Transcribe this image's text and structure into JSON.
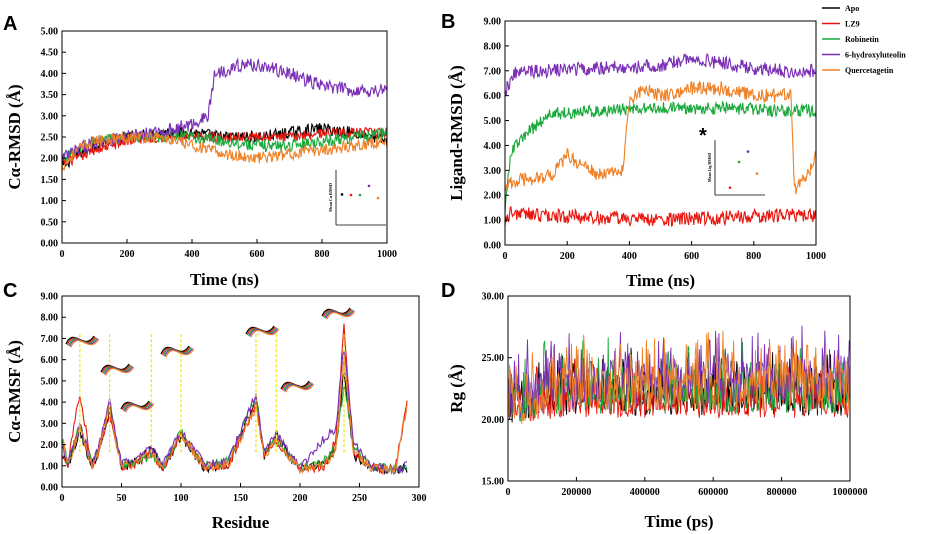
{
  "figure": {
    "legend": [
      {
        "name": "Apo",
        "color": "#000000"
      },
      {
        "name": "LZ9",
        "color": "#e8160f"
      },
      {
        "name": "Robinetin",
        "color": "#19a83a"
      },
      {
        "name": "6-hydroxyluteolin",
        "color": "#7a2fb5"
      },
      {
        "name": "Quercetagetin",
        "color": "#ee8127"
      }
    ]
  },
  "chart_data": [
    {
      "panel": "A",
      "type": "line",
      "xlabel": "Time (ns)",
      "ylabel": "Cα-RMSD (Å)",
      "xlim": [
        0,
        1000
      ],
      "ylim": [
        0,
        5
      ],
      "xticks": [
        "0",
        "200",
        "400",
        "600",
        "800",
        "1000"
      ],
      "yticks": [
        "0.00",
        "0.50",
        "1.00",
        "1.50",
        "2.00",
        "2.50",
        "3.00",
        "3.50",
        "4.00",
        "4.50",
        "5.00"
      ],
      "series": [
        {
          "name": "Apo",
          "x": [
            0,
            50,
            100,
            200,
            300,
            400,
            500,
            600,
            700,
            800,
            900,
            1000
          ],
          "y": [
            1.8,
            2.1,
            2.3,
            2.5,
            2.6,
            2.6,
            2.5,
            2.5,
            2.6,
            2.7,
            2.6,
            2.4
          ],
          "noise": 0.14
        },
        {
          "name": "LZ9",
          "x": [
            0,
            50,
            100,
            200,
            300,
            400,
            500,
            600,
            700,
            800,
            900,
            1000
          ],
          "y": [
            1.9,
            2.0,
            2.2,
            2.4,
            2.5,
            2.5,
            2.5,
            2.5,
            2.5,
            2.6,
            2.6,
            2.6
          ],
          "noise": 0.12
        },
        {
          "name": "Robinetin",
          "x": [
            0,
            50,
            100,
            200,
            300,
            400,
            500,
            600,
            700,
            800,
            900,
            1000
          ],
          "y": [
            2.0,
            2.2,
            2.4,
            2.5,
            2.5,
            2.5,
            2.4,
            2.3,
            2.3,
            2.4,
            2.5,
            2.6
          ],
          "noise": 0.14
        },
        {
          "name": "6-hydroxyluteolin",
          "x": [
            0,
            50,
            100,
            200,
            300,
            400,
            450,
            470,
            550,
            600,
            700,
            800,
            900,
            1000
          ],
          "y": [
            2.0,
            2.2,
            2.4,
            2.5,
            2.6,
            2.8,
            3.0,
            4.0,
            4.2,
            4.2,
            4.0,
            3.7,
            3.6,
            3.6
          ],
          "noise": 0.16
        },
        {
          "name": "Quercetagetin",
          "x": [
            0,
            50,
            100,
            200,
            300,
            400,
            500,
            600,
            700,
            800,
            900,
            1000
          ],
          "y": [
            1.8,
            2.2,
            2.4,
            2.5,
            2.5,
            2.3,
            2.1,
            2.0,
            2.1,
            2.2,
            2.3,
            2.4
          ],
          "noise": 0.14
        }
      ],
      "inset": {
        "ylabel": "Mean Cα RMSD",
        "values": [
          2.5,
          2.45,
          2.45,
          3.2,
          2.2
        ]
      }
    },
    {
      "panel": "B",
      "type": "line",
      "xlabel": "Time (ns)",
      "ylabel": "Ligand-RMSD (Å)",
      "xlim": [
        0,
        1000
      ],
      "ylim": [
        0,
        9
      ],
      "xticks": [
        "0",
        "200",
        "400",
        "600",
        "800",
        "1000"
      ],
      "yticks": [
        "0.00",
        "1.00",
        "2.00",
        "3.00",
        "4.00",
        "5.00",
        "6.00",
        "7.00",
        "8.00",
        "9.00"
      ],
      "series": [
        {
          "name": "LZ9",
          "x": [
            0,
            20,
            100,
            300,
            500,
            700,
            900,
            1000
          ],
          "y": [
            1.0,
            1.3,
            1.2,
            1.1,
            1.0,
            1.1,
            1.2,
            1.2
          ],
          "noise": 0.28
        },
        {
          "name": "Robinetin",
          "x": [
            0,
            20,
            80,
            150,
            200,
            300,
            500,
            700,
            900,
            1000
          ],
          "y": [
            1.5,
            3.8,
            4.6,
            5.3,
            5.3,
            5.4,
            5.5,
            5.5,
            5.4,
            5.4
          ],
          "noise": 0.25
        },
        {
          "name": "6-hydroxyluteolin",
          "x": [
            0,
            30,
            100,
            300,
            500,
            600,
            700,
            800,
            900,
            1000
          ],
          "y": [
            6.2,
            6.9,
            7.0,
            7.1,
            7.2,
            7.5,
            7.3,
            7.1,
            7.0,
            7.0
          ],
          "noise": 0.28
        },
        {
          "name": "Quercetagetin",
          "x": [
            0,
            50,
            150,
            200,
            300,
            380,
            400,
            450,
            500,
            600,
            700,
            800,
            900,
            920,
            930,
            980,
            1000
          ],
          "y": [
            2.4,
            2.6,
            2.8,
            3.6,
            2.8,
            3.0,
            5.8,
            6.3,
            6.0,
            6.3,
            6.3,
            6.0,
            6.0,
            6.0,
            2.2,
            3.0,
            3.8
          ],
          "noise": 0.28
        }
      ],
      "inset": {
        "ylabel": "Mean Lig RMSD",
        "annotation": "*",
        "values": [
          null,
          1.2,
          5.4,
          7.1,
          3.5
        ]
      }
    },
    {
      "panel": "C",
      "type": "line",
      "xlabel": "Residue",
      "ylabel": "Cα-RMSF (Å)",
      "xlim": [
        0,
        300
      ],
      "ylim": [
        0,
        9
      ],
      "xticks": [
        "0",
        "50",
        "100",
        "150",
        "200",
        "250",
        "300"
      ],
      "yticks": [
        "0.00",
        "1.00",
        "2.00",
        "3.00",
        "4.00",
        "5.00",
        "6.00",
        "7.00",
        "8.00",
        "9.00"
      ],
      "markers": [
        15,
        40,
        75,
        100,
        163,
        180,
        237
      ],
      "series": [
        {
          "name": "Apo",
          "x": [
            1,
            5,
            15,
            25,
            30,
            40,
            50,
            60,
            75,
            85,
            100,
            120,
            140,
            163,
            170,
            180,
            200,
            220,
            230,
            237,
            245,
            260,
            280,
            290
          ],
          "y": [
            1.4,
            1.0,
            2.6,
            1.0,
            1.6,
            3.6,
            1.0,
            1.1,
            1.8,
            0.9,
            2.4,
            0.9,
            1.1,
            4.2,
            1.5,
            2.4,
            0.9,
            1.1,
            1.8,
            5.5,
            1.5,
            0.9,
            0.8,
            0.9
          ],
          "noise": 0.22
        },
        {
          "name": "LZ9",
          "x": [
            1,
            5,
            15,
            25,
            30,
            40,
            50,
            60,
            75,
            85,
            100,
            120,
            140,
            163,
            170,
            180,
            200,
            220,
            230,
            237,
            245,
            260,
            280,
            290
          ],
          "y": [
            1.5,
            1.0,
            4.5,
            1.0,
            1.5,
            3.4,
            1.0,
            1.0,
            1.6,
            0.9,
            2.5,
            0.9,
            1.0,
            3.9,
            1.4,
            2.1,
            0.8,
            1.0,
            2.2,
            7.6,
            1.6,
            0.9,
            0.8,
            4.0
          ],
          "noise": 0.22
        },
        {
          "name": "Robinetin",
          "x": [
            1,
            5,
            15,
            25,
            30,
            40,
            50,
            60,
            75,
            85,
            100,
            120,
            140,
            163,
            170,
            180,
            200,
            220,
            230,
            237,
            245,
            260,
            280,
            290
          ],
          "y": [
            2.0,
            1.1,
            2.9,
            1.1,
            1.7,
            3.8,
            1.1,
            1.1,
            1.5,
            0.9,
            2.6,
            1.0,
            1.2,
            4.3,
            1.6,
            2.3,
            0.9,
            1.2,
            1.9,
            4.8,
            1.9,
            1.0,
            0.8,
            0.9
          ],
          "noise": 0.22
        },
        {
          "name": "6-hydroxyluteolin",
          "x": [
            1,
            5,
            15,
            25,
            30,
            40,
            50,
            60,
            75,
            85,
            100,
            120,
            140,
            163,
            170,
            180,
            200,
            220,
            230,
            237,
            245,
            260,
            280,
            290
          ],
          "y": [
            1.8,
            1.1,
            3.0,
            1.1,
            1.8,
            4.0,
            1.1,
            1.2,
            1.8,
            1.0,
            2.7,
            1.0,
            1.2,
            4.4,
            1.7,
            2.5,
            0.9,
            2.3,
            2.8,
            6.6,
            2.1,
            1.0,
            0.8,
            1.0
          ],
          "noise": 0.22
        },
        {
          "name": "Quercetagetin",
          "x": [
            1,
            5,
            15,
            25,
            30,
            40,
            50,
            60,
            75,
            85,
            100,
            120,
            140,
            163,
            170,
            180,
            200,
            220,
            230,
            237,
            245,
            260,
            280,
            290
          ],
          "y": [
            2.2,
            1.0,
            2.8,
            1.0,
            1.6,
            3.7,
            1.0,
            1.1,
            1.6,
            0.9,
            2.5,
            0.9,
            1.1,
            3.8,
            1.4,
            2.2,
            0.8,
            1.0,
            1.7,
            6.0,
            1.6,
            0.9,
            0.8,
            3.9
          ],
          "noise": 0.22
        }
      ]
    },
    {
      "panel": "D",
      "type": "line",
      "xlabel": "Time (ps)",
      "ylabel": "Rg (Å)",
      "xlim": [
        0,
        1000000
      ],
      "ylim": [
        15,
        30
      ],
      "xticks": [
        "0",
        "200000",
        "400000",
        "600000",
        "800000",
        "1000000"
      ],
      "yticks": [
        "15.00",
        "20.00",
        "25.00",
        "30.00"
      ],
      "series": [
        {
          "name": "Apo",
          "x": [
            0,
            100000,
            400000,
            700000,
            1000000
          ],
          "y": [
            20.8,
            21.5,
            21.6,
            21.6,
            21.6
          ],
          "noise": 1.3
        },
        {
          "name": "LZ9",
          "x": [
            0,
            100000,
            400000,
            700000,
            1000000
          ],
          "y": [
            20.4,
            20.8,
            21.0,
            21.0,
            21.0
          ],
          "noise": 0.9
        },
        {
          "name": "Robinetin",
          "x": [
            0,
            100000,
            400000,
            700000,
            1000000
          ],
          "y": [
            20.8,
            22.0,
            22.0,
            22.0,
            22.0
          ],
          "noise": 1.6
        },
        {
          "name": "6-hydroxyluteolin",
          "x": [
            0,
            100000,
            400000,
            700000,
            1000000
          ],
          "y": [
            21.0,
            22.2,
            22.8,
            23.0,
            23.0
          ],
          "noise": 1.8
        },
        {
          "name": "Quercetagetin",
          "x": [
            0,
            100000,
            400000,
            700000,
            1000000
          ],
          "y": [
            20.8,
            22.0,
            22.5,
            22.5,
            22.5
          ],
          "noise": 1.8
        }
      ]
    }
  ]
}
